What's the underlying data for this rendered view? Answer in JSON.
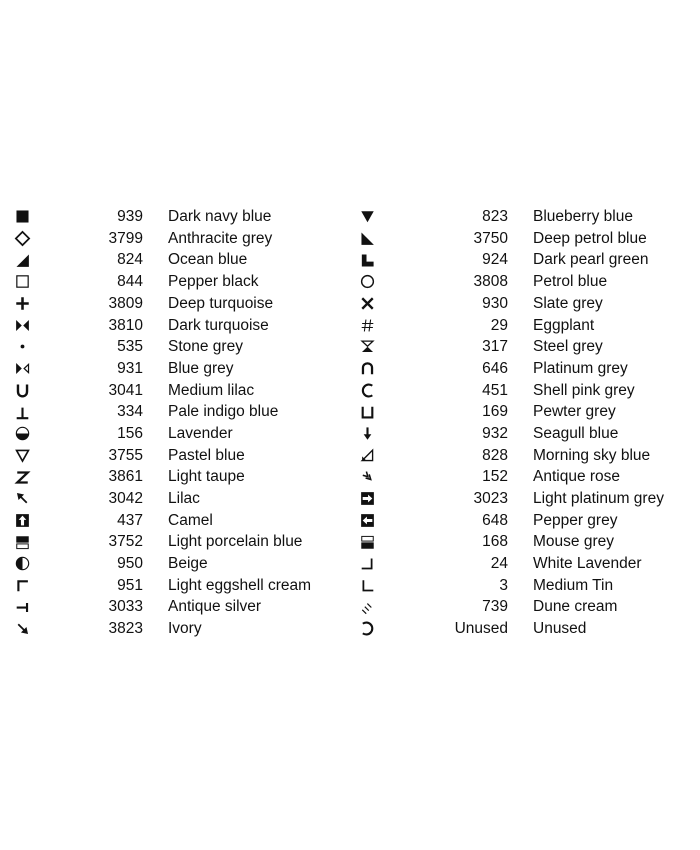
{
  "page": {
    "background": "#ffffff",
    "text_color": "#111111"
  },
  "legend": {
    "columns": [
      {
        "side": "left",
        "rows": [
          {
            "symbol": "sq-filled",
            "icon": "filled-square-icon",
            "number": "939",
            "name": "Dark navy blue"
          },
          {
            "symbol": "diamond-open",
            "icon": "open-diamond-icon",
            "number": "3799",
            "name": "Anthracite grey"
          },
          {
            "symbol": "tri-lr",
            "icon": "lower-right-triangle-icon",
            "number": "824",
            "name": "Ocean blue"
          },
          {
            "symbol": "sq-open",
            "icon": "open-square-icon",
            "number": "844",
            "name": "Pepper black"
          },
          {
            "symbol": "plus",
            "icon": "plus-icon",
            "number": "3809",
            "name": "Deep turquoise"
          },
          {
            "symbol": "bowtie",
            "icon": "black-bowtie-icon",
            "number": "3810",
            "name": "Dark turquoise"
          },
          {
            "symbol": "dot",
            "icon": "small-dot-icon",
            "number": "535",
            "name": "Stone grey"
          },
          {
            "symbol": "bowtie-left",
            "icon": "half-black-bowtie-icon",
            "number": "931",
            "name": "Blue grey"
          },
          {
            "symbol": "letter-u",
            "icon": "letter-u-icon",
            "number": "3041",
            "name": "Medium lilac"
          },
          {
            "symbol": "tack-up",
            "icon": "perpendicular-tack-icon",
            "number": "334",
            "name": "Pale indigo blue"
          },
          {
            "symbol": "circle-bottom",
            "icon": "circle-bottom-half-icon",
            "number": "156",
            "name": "Lavender"
          },
          {
            "symbol": "tri-down-open",
            "icon": "open-triangle-down-icon",
            "number": "3755",
            "name": "Pastel blue"
          },
          {
            "symbol": "letter-z",
            "icon": "letter-z-icon",
            "number": "3861",
            "name": "Light taupe"
          },
          {
            "symbol": "arrow-nw",
            "icon": "arrow-northwest-icon",
            "number": "3042",
            "name": "Lilac"
          },
          {
            "symbol": "sq-arrow-up",
            "icon": "square-arrow-up-icon",
            "number": "437",
            "name": "Camel"
          },
          {
            "symbol": "sq-top",
            "icon": "square-top-half-icon",
            "number": "3752",
            "name": "Light porcelain blue"
          },
          {
            "symbol": "circle-left",
            "icon": "circle-left-half-icon",
            "number": "950",
            "name": "Beige"
          },
          {
            "symbol": "corner-tl",
            "icon": "corner-top-left-icon",
            "number": "951",
            "name": "Light eggshell cream"
          },
          {
            "symbol": "tack-left",
            "icon": "left-tack-icon",
            "number": "3033",
            "name": "Antique silver"
          },
          {
            "symbol": "arrow-se",
            "icon": "arrow-southeast-icon",
            "number": "3823",
            "name": "Ivory"
          }
        ]
      },
      {
        "side": "right",
        "rows": [
          {
            "symbol": "tri-down-filled",
            "icon": "filled-triangle-down-icon",
            "number": "823",
            "name": "Blueberry blue"
          },
          {
            "symbol": "tri-ll",
            "icon": "lower-left-triangle-icon",
            "number": "3750",
            "name": "Deep petrol blue"
          },
          {
            "symbol": "l-block",
            "icon": "solid-l-block-icon",
            "number": "924",
            "name": "Dark pearl green"
          },
          {
            "symbol": "circle-open",
            "icon": "open-circle-icon",
            "number": "3808",
            "name": "Petrol blue"
          },
          {
            "symbol": "x-cross",
            "icon": "x-cross-icon",
            "number": "930",
            "name": "Slate grey"
          },
          {
            "symbol": "hash",
            "icon": "hash-icon",
            "number": "29",
            "name": "Eggplant"
          },
          {
            "symbol": "hourglass",
            "icon": "hourglass-icon",
            "number": "317",
            "name": "Steel grey"
          },
          {
            "symbol": "cap",
            "icon": "cap-intersection-icon",
            "number": "646",
            "name": "Platinum grey"
          },
          {
            "symbol": "subset",
            "icon": "subset-c-icon",
            "number": "451",
            "name": "Shell pink grey"
          },
          {
            "symbol": "sqcup",
            "icon": "square-cup-icon",
            "number": "169",
            "name": "Pewter grey"
          },
          {
            "symbol": "arrow-down",
            "icon": "arrow-down-icon",
            "number": "932",
            "name": "Seagull blue"
          },
          {
            "symbol": "tri-open-corner",
            "icon": "open-triangle-corner-icon",
            "number": "828",
            "name": "Morning sky blue"
          },
          {
            "symbol": "chevrons-se",
            "icon": "double-chevron-southeast-icon",
            "number": "152",
            "name": "Antique rose"
          },
          {
            "symbol": "sq-arrow-right",
            "icon": "square-arrow-right-icon",
            "number": "3023",
            "name": "Light platinum grey"
          },
          {
            "symbol": "sq-arrow-left",
            "icon": "square-arrow-left-icon",
            "number": "648",
            "name": "Pepper grey"
          },
          {
            "symbol": "sq-bottom",
            "icon": "square-bottom-half-icon",
            "number": "168",
            "name": "Mouse grey"
          },
          {
            "symbol": "corner-br",
            "icon": "corner-bottom-right-icon",
            "number": "24",
            "name": "White Lavender"
          },
          {
            "symbol": "corner-bl",
            "icon": "corner-bottom-left-icon",
            "number": "3",
            "name": "Medium Tin"
          },
          {
            "symbol": "hatch",
            "icon": "triple-hatch-icon",
            "number": "739",
            "name": "Dune cream"
          },
          {
            "symbol": "superset",
            "icon": "superset-c-icon",
            "number": "Unused",
            "name": "Unused"
          }
        ]
      }
    ]
  }
}
